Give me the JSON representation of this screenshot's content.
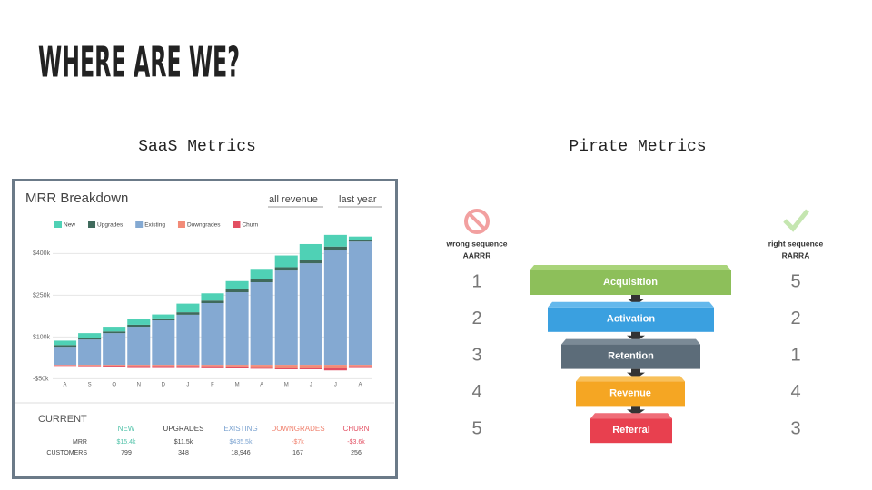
{
  "slide": {
    "title": "WHERE ARE WE?",
    "left_heading": "SaaS Metrics",
    "right_heading": "Pirate Metrics"
  },
  "chart_data": {
    "type": "stacked-bar",
    "title": "MRR Breakdown",
    "controls": [
      "all revenue",
      "last year"
    ],
    "categories": [
      "A",
      "S",
      "O",
      "N",
      "D",
      "J",
      "F",
      "M",
      "A",
      "M",
      "J",
      "J",
      "A"
    ],
    "series": [
      {
        "name": "New",
        "color": "#4fd1b5",
        "values": [
          16000,
          17000,
          17000,
          20000,
          14000,
          31000,
          26000,
          30000,
          38000,
          42000,
          56000,
          42000,
          12000
        ]
      },
      {
        "name": "Upgrades",
        "color": "#3f6a5c",
        "values": [
          6000,
          6000,
          6000,
          7000,
          7000,
          9000,
          9000,
          10000,
          10000,
          12000,
          13000,
          14000,
          6000
        ]
      },
      {
        "name": "Existing",
        "color": "#84a9d2",
        "values": [
          65000,
          91000,
          114000,
          137000,
          160000,
          180000,
          222000,
          261000,
          297000,
          339000,
          365000,
          411000,
          443000
        ]
      },
      {
        "name": "Downgrades",
        "color": "#f28b78",
        "values": [
          -2000,
          -3000,
          -3000,
          -4000,
          -4000,
          -4000,
          -5000,
          -6000,
          -8000,
          -10000,
          -10000,
          -12000,
          -5000
        ]
      },
      {
        "name": "Churn",
        "color": "#e34f62",
        "values": [
          -2000,
          -2000,
          -3000,
          -4000,
          -4000,
          -4000,
          -4000,
          -6000,
          -6000,
          -6000,
          -6000,
          -8000,
          -3000
        ]
      }
    ],
    "ylim": [
      -60000,
      460000
    ],
    "yticks": [
      {
        "value": -50000,
        "label": "-$50k"
      },
      {
        "value": 100000,
        "label": "$100k"
      },
      {
        "value": 250000,
        "label": "$250k"
      },
      {
        "value": 400000,
        "label": "$400k"
      }
    ],
    "grid": true
  },
  "summary": {
    "title": "CURRENT",
    "columns": [
      "NEW",
      "UPGRADES",
      "EXISTING",
      "DOWNGRADES",
      "CHURN"
    ],
    "rows": [
      {
        "label": "MRR",
        "cells": [
          "$15.4k",
          "$11.5k",
          "$435.5k",
          "-$7k",
          "-$3.6k"
        ]
      },
      {
        "label": "CUSTOMERS",
        "cells": [
          "799",
          "348",
          "18,946",
          "167",
          "256"
        ]
      }
    ]
  },
  "pirate": {
    "wrong": {
      "label": "wrong sequence",
      "code": "AARRR",
      "numbers": [
        1,
        2,
        3,
        4,
        5
      ]
    },
    "right": {
      "label": "right sequence",
      "code": "RARRA",
      "numbers": [
        5,
        2,
        1,
        4,
        3
      ]
    },
    "stages": [
      "Acquisition",
      "Activation",
      "Retention",
      "Revenue",
      "Referral"
    ]
  }
}
